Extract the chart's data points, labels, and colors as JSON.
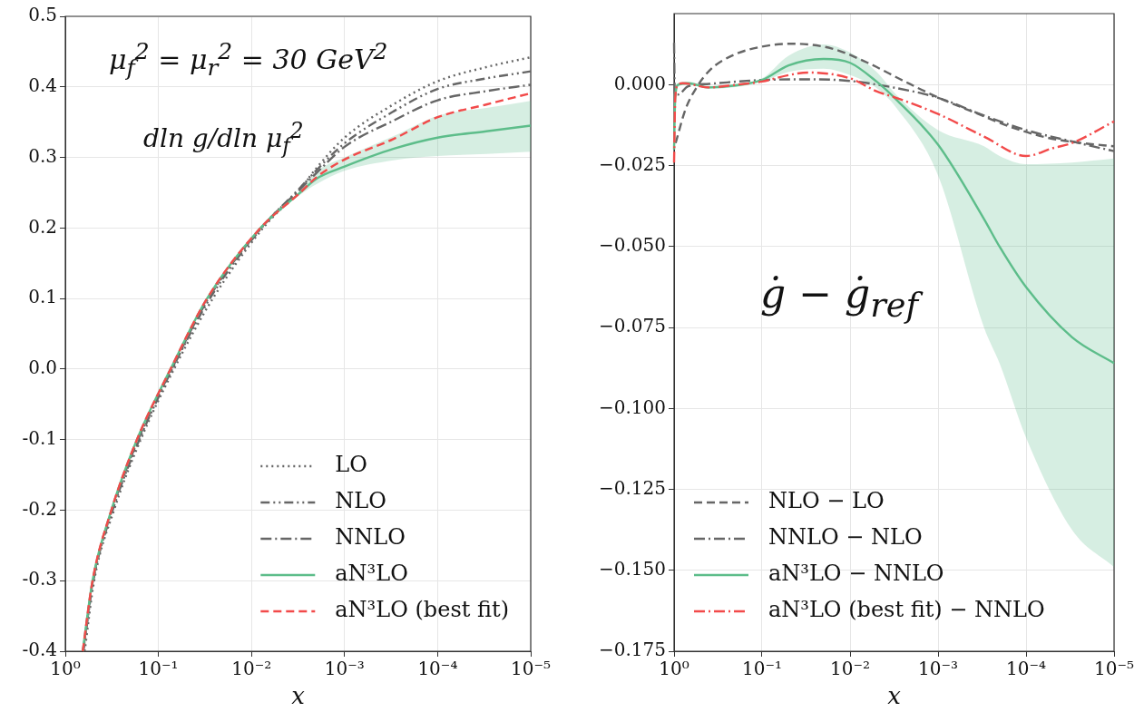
{
  "chart_data": [
    {
      "type": "line",
      "xlabel": "x",
      "log": "x",
      "xlim": [
        1,
        1e-05
      ],
      "xticks": [
        {
          "value": 1,
          "label": "10⁰"
        },
        {
          "value": 0.1,
          "label": "10⁻¹"
        },
        {
          "value": 0.01,
          "label": "10⁻²"
        },
        {
          "value": 0.001,
          "label": "10⁻³"
        },
        {
          "value": 0.0001,
          "label": "10⁻⁴"
        },
        {
          "value": 1e-05,
          "label": "10⁻⁵"
        }
      ],
      "ylim": [
        -0.4,
        0.5
      ],
      "yticks": [
        {
          "value": -0.4,
          "label": "-0.4"
        },
        {
          "value": -0.3,
          "label": "-0.3"
        },
        {
          "value": -0.2,
          "label": "-0.2"
        },
        {
          "value": -0.1,
          "label": "-0.1"
        },
        {
          "value": 0,
          "label": "0.0"
        },
        {
          "value": 0.1,
          "label": "0.1"
        },
        {
          "value": 0.2,
          "label": "0.2"
        },
        {
          "value": 0.3,
          "label": "0.3"
        },
        {
          "value": 0.4,
          "label": "0.4"
        },
        {
          "value": 0.5,
          "label": "0.5"
        }
      ],
      "grid": true,
      "legend": "bottom right",
      "annotations": [
        "μ$_{f}$$^{2}$ = μ$_{r}$$^{2}$ = 30 GeV$^{2}$",
        "dln g/dln μ$_{f}$$^{2}$"
      ],
      "series": [
        {
          "name": "LO",
          "color": "#666666",
          "line_style": "dotted",
          "x": [
            0.62,
            0.49,
            0.3,
            0.155,
            0.068,
            0.026,
            0.0075,
            0.003,
            0.002,
            0.001,
            0.0003,
            0.0001,
            3e-05,
            1e-05
          ],
          "values": [
            -0.4,
            -0.3,
            -0.2,
            -0.1,
            0,
            0.1,
            0.2,
            0.255,
            0.285,
            0.328,
            0.375,
            0.408,
            0.428,
            0.442
          ]
        },
        {
          "name": "NLO",
          "color": "#666666",
          "line_style": "dashdotdot",
          "x": [
            0.64,
            0.5,
            0.31,
            0.16,
            0.071,
            0.028,
            0.0078,
            0.003,
            0.002,
            0.001,
            0.0003,
            0.0001,
            3e-05,
            1e-05
          ],
          "values": [
            -0.4,
            -0.3,
            -0.2,
            -0.1,
            0,
            0.1,
            0.2,
            0.257,
            0.282,
            0.32,
            0.365,
            0.397,
            0.412,
            0.422
          ]
        },
        {
          "name": "NNLO",
          "color": "#666666",
          "line_style": "dashdot",
          "x": [
            0.645,
            0.505,
            0.315,
            0.165,
            0.072,
            0.029,
            0.0079,
            0.003,
            0.002,
            0.001,
            0.0003,
            0.0001,
            3e-05,
            1e-05
          ],
          "values": [
            -0.4,
            -0.3,
            -0.2,
            -0.1,
            0,
            0.1,
            0.2,
            0.255,
            0.278,
            0.315,
            0.352,
            0.381,
            0.394,
            0.403
          ]
        },
        {
          "name": "aN³LO",
          "color": "#5dbd8a",
          "line_style": "solid",
          "x": [
            0.65,
            0.51,
            0.32,
            0.17,
            0.074,
            0.03,
            0.008,
            0.003,
            0.002,
            0.001,
            0.0003,
            0.0001,
            3e-05,
            1e-05
          ],
          "values": [
            -0.4,
            -0.3,
            -0.2,
            -0.1,
            0,
            0.1,
            0.2,
            0.25,
            0.27,
            0.287,
            0.312,
            0.328,
            0.337,
            0.345
          ],
          "lower": [
            -0.4,
            -0.3,
            -0.2,
            -0.1,
            0,
            0.1,
            0.2,
            0.247,
            0.262,
            0.281,
            0.296,
            0.302,
            0.305,
            0.308
          ],
          "upper": [
            -0.4,
            -0.3,
            -0.2,
            -0.1,
            0,
            0.1,
            0.2,
            0.253,
            0.28,
            0.3,
            0.33,
            0.359,
            0.37,
            0.38
          ]
        },
        {
          "name": "aN³LO (best fit)",
          "color": "#f24a4a",
          "line_style": "dashed",
          "x": [
            0.65,
            0.51,
            0.32,
            0.17,
            0.074,
            0.03,
            0.008,
            0.003,
            0.002,
            0.001,
            0.0003,
            0.0001,
            3e-05,
            1e-05
          ],
          "values": [
            -0.4,
            -0.3,
            -0.2,
            -0.1,
            0,
            0.1,
            0.2,
            0.25,
            0.272,
            0.297,
            0.326,
            0.357,
            0.375,
            0.391
          ]
        }
      ]
    },
    {
      "type": "line",
      "xlabel": "x",
      "log": "x",
      "xlim": [
        1,
        1e-05
      ],
      "xticks": [
        {
          "value": 1,
          "label": "10⁰"
        },
        {
          "value": 0.1,
          "label": "10⁻¹"
        },
        {
          "value": 0.01,
          "label": "10⁻²"
        },
        {
          "value": 0.001,
          "label": "10⁻³"
        },
        {
          "value": 0.0001,
          "label": "10⁻⁴"
        },
        {
          "value": 1e-05,
          "label": "10⁻⁵"
        }
      ],
      "ylim": [
        -0.175,
        0.022
      ],
      "yticks": [
        {
          "value": -0.175,
          "label": "−0.175"
        },
        {
          "value": -0.15,
          "label": "−0.150"
        },
        {
          "value": -0.125,
          "label": "−0.125"
        },
        {
          "value": -0.1,
          "label": "−0.100"
        },
        {
          "value": -0.075,
          "label": "−0.075"
        },
        {
          "value": -0.05,
          "label": "−0.050"
        },
        {
          "value": -0.025,
          "label": "−0.025"
        },
        {
          "value": 0,
          "label": "0.000"
        }
      ],
      "grid": true,
      "legend": "bottom left",
      "annotations": [
        "ġ − ġ$_{ref}$"
      ],
      "series": [
        {
          "name": "NLO − LO",
          "color": "#666666",
          "line_style": "dashed",
          "x": [
            0.96,
            0.74,
            0.56,
            0.39,
            0.22,
            0.1,
            0.045,
            0.016,
            0.0063,
            0.0025,
            0.00095,
            0.00038,
            0.00015,
            5.8e-05,
            2.3e-05,
            1e-05
          ],
          "values": [
            -0.018,
            -0.0075,
            -0.001,
            0.0046,
            0.009,
            0.0118,
            0.0127,
            0.0112,
            0.0068,
            0.0013,
            -0.0042,
            -0.0086,
            -0.013,
            -0.0163,
            -0.018,
            -0.019
          ]
        },
        {
          "name": "NNLO − NLO",
          "color": "#666666",
          "line_style": "dashdot",
          "x": [
            1,
            0.98,
            0.9,
            0.7,
            0.4,
            0.1,
            0.03,
            0.01,
            0.003,
            0.001,
            0.0003,
            0.0001,
            3e-05,
            1e-05
          ],
          "values": [
            0.013,
            -0.003,
            -0.003,
            -0.0005,
            0.0003,
            0.0015,
            0.0017,
            0.0012,
            -0.001,
            -0.004,
            -0.0095,
            -0.014,
            -0.0175,
            -0.0205
          ]
        },
        {
          "name": "aN³LO − NNLO",
          "color": "#5dbd8a",
          "line_style": "solid",
          "x": [
            1,
            0.97,
            0.9,
            0.7,
            0.4,
            0.2,
            0.1,
            0.05,
            0.02,
            0.01,
            0.005,
            0.003,
            0.001,
            0.0003,
            0.0002,
            0.0001,
            3e-05,
            1e-05
          ],
          "values": [
            -0.02,
            -0.004,
            0,
            0.0005,
            -0.0008,
            -0.0002,
            0.0015,
            0.006,
            0.008,
            0.0068,
            0.001,
            -0.0045,
            -0.0185,
            -0.0415,
            -0.05,
            -0.0625,
            -0.078,
            -0.086
          ],
          "lower": [
            -0.021,
            -0.005,
            -0.0005,
            0,
            -0.0012,
            -0.0007,
            0.001,
            0.004,
            0.005,
            0.003,
            -0.001,
            -0.007,
            -0.028,
            -0.075,
            -0.086,
            -0.109,
            -0.1375,
            -0.149
          ],
          "upper": [
            -0.019,
            -0.003,
            0.0005,
            0.001,
            -0.0004,
            0.0003,
            0.002,
            0.009,
            0.0125,
            0.01,
            0.004,
            -0.003,
            -0.014,
            -0.019,
            -0.022,
            -0.0245,
            -0.024,
            -0.0228
          ]
        },
        {
          "name": "aN³LO (best fit) − NNLO",
          "color": "#f24a4a",
          "line_style": "dashdot",
          "x": [
            1,
            0.97,
            0.9,
            0.8,
            0.4,
            0.2,
            0.1,
            0.05,
            0.03,
            0.01,
            0.005,
            0.003,
            0.001,
            0.0003,
            0.0001,
            5e-05,
            3e-05,
            1e-05
          ],
          "values": [
            -0.024,
            -0.004,
            0,
            0.0005,
            -0.0008,
            0,
            0.001,
            0.003,
            0.0038,
            0.002,
            -0.002,
            -0.004,
            -0.009,
            -0.016,
            -0.022,
            -0.0196,
            -0.018,
            -0.0113
          ]
        }
      ]
    }
  ]
}
